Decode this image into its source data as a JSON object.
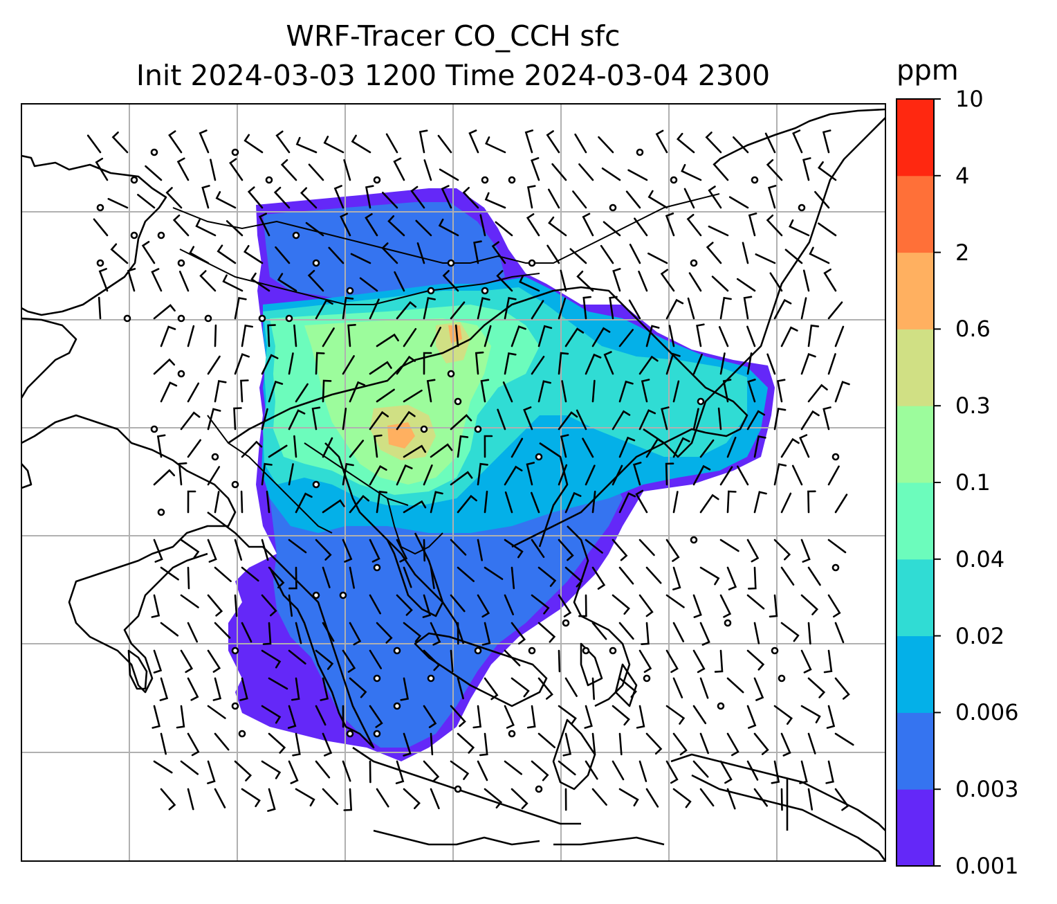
{
  "title": {
    "line1": "WRF-Tracer CO_CCH sfc",
    "line2": "Init 2024-03-03 1200 Time 2024-03-04 2300"
  },
  "colorbar": {
    "unit": "ppm",
    "levels": [
      "0.001",
      "0.003",
      "0.006",
      "0.02",
      "0.04",
      "0.1",
      "0.3",
      "0.6",
      "2",
      "4",
      "10"
    ],
    "colors": [
      "#6428f8",
      "#3574f0",
      "#04b0e8",
      "#30dcd4",
      "#6cfcbc",
      "#9cfc9c",
      "#d0e084",
      "#ffb060",
      "#ff7038",
      "#ff2810"
    ]
  },
  "map": {
    "gridlines": true,
    "land_outline_color": "#000000",
    "grid_color": "#b0b0b0",
    "features": [
      "coastlines",
      "country borders",
      "wind barbs",
      "calm-wind circles"
    ]
  }
}
